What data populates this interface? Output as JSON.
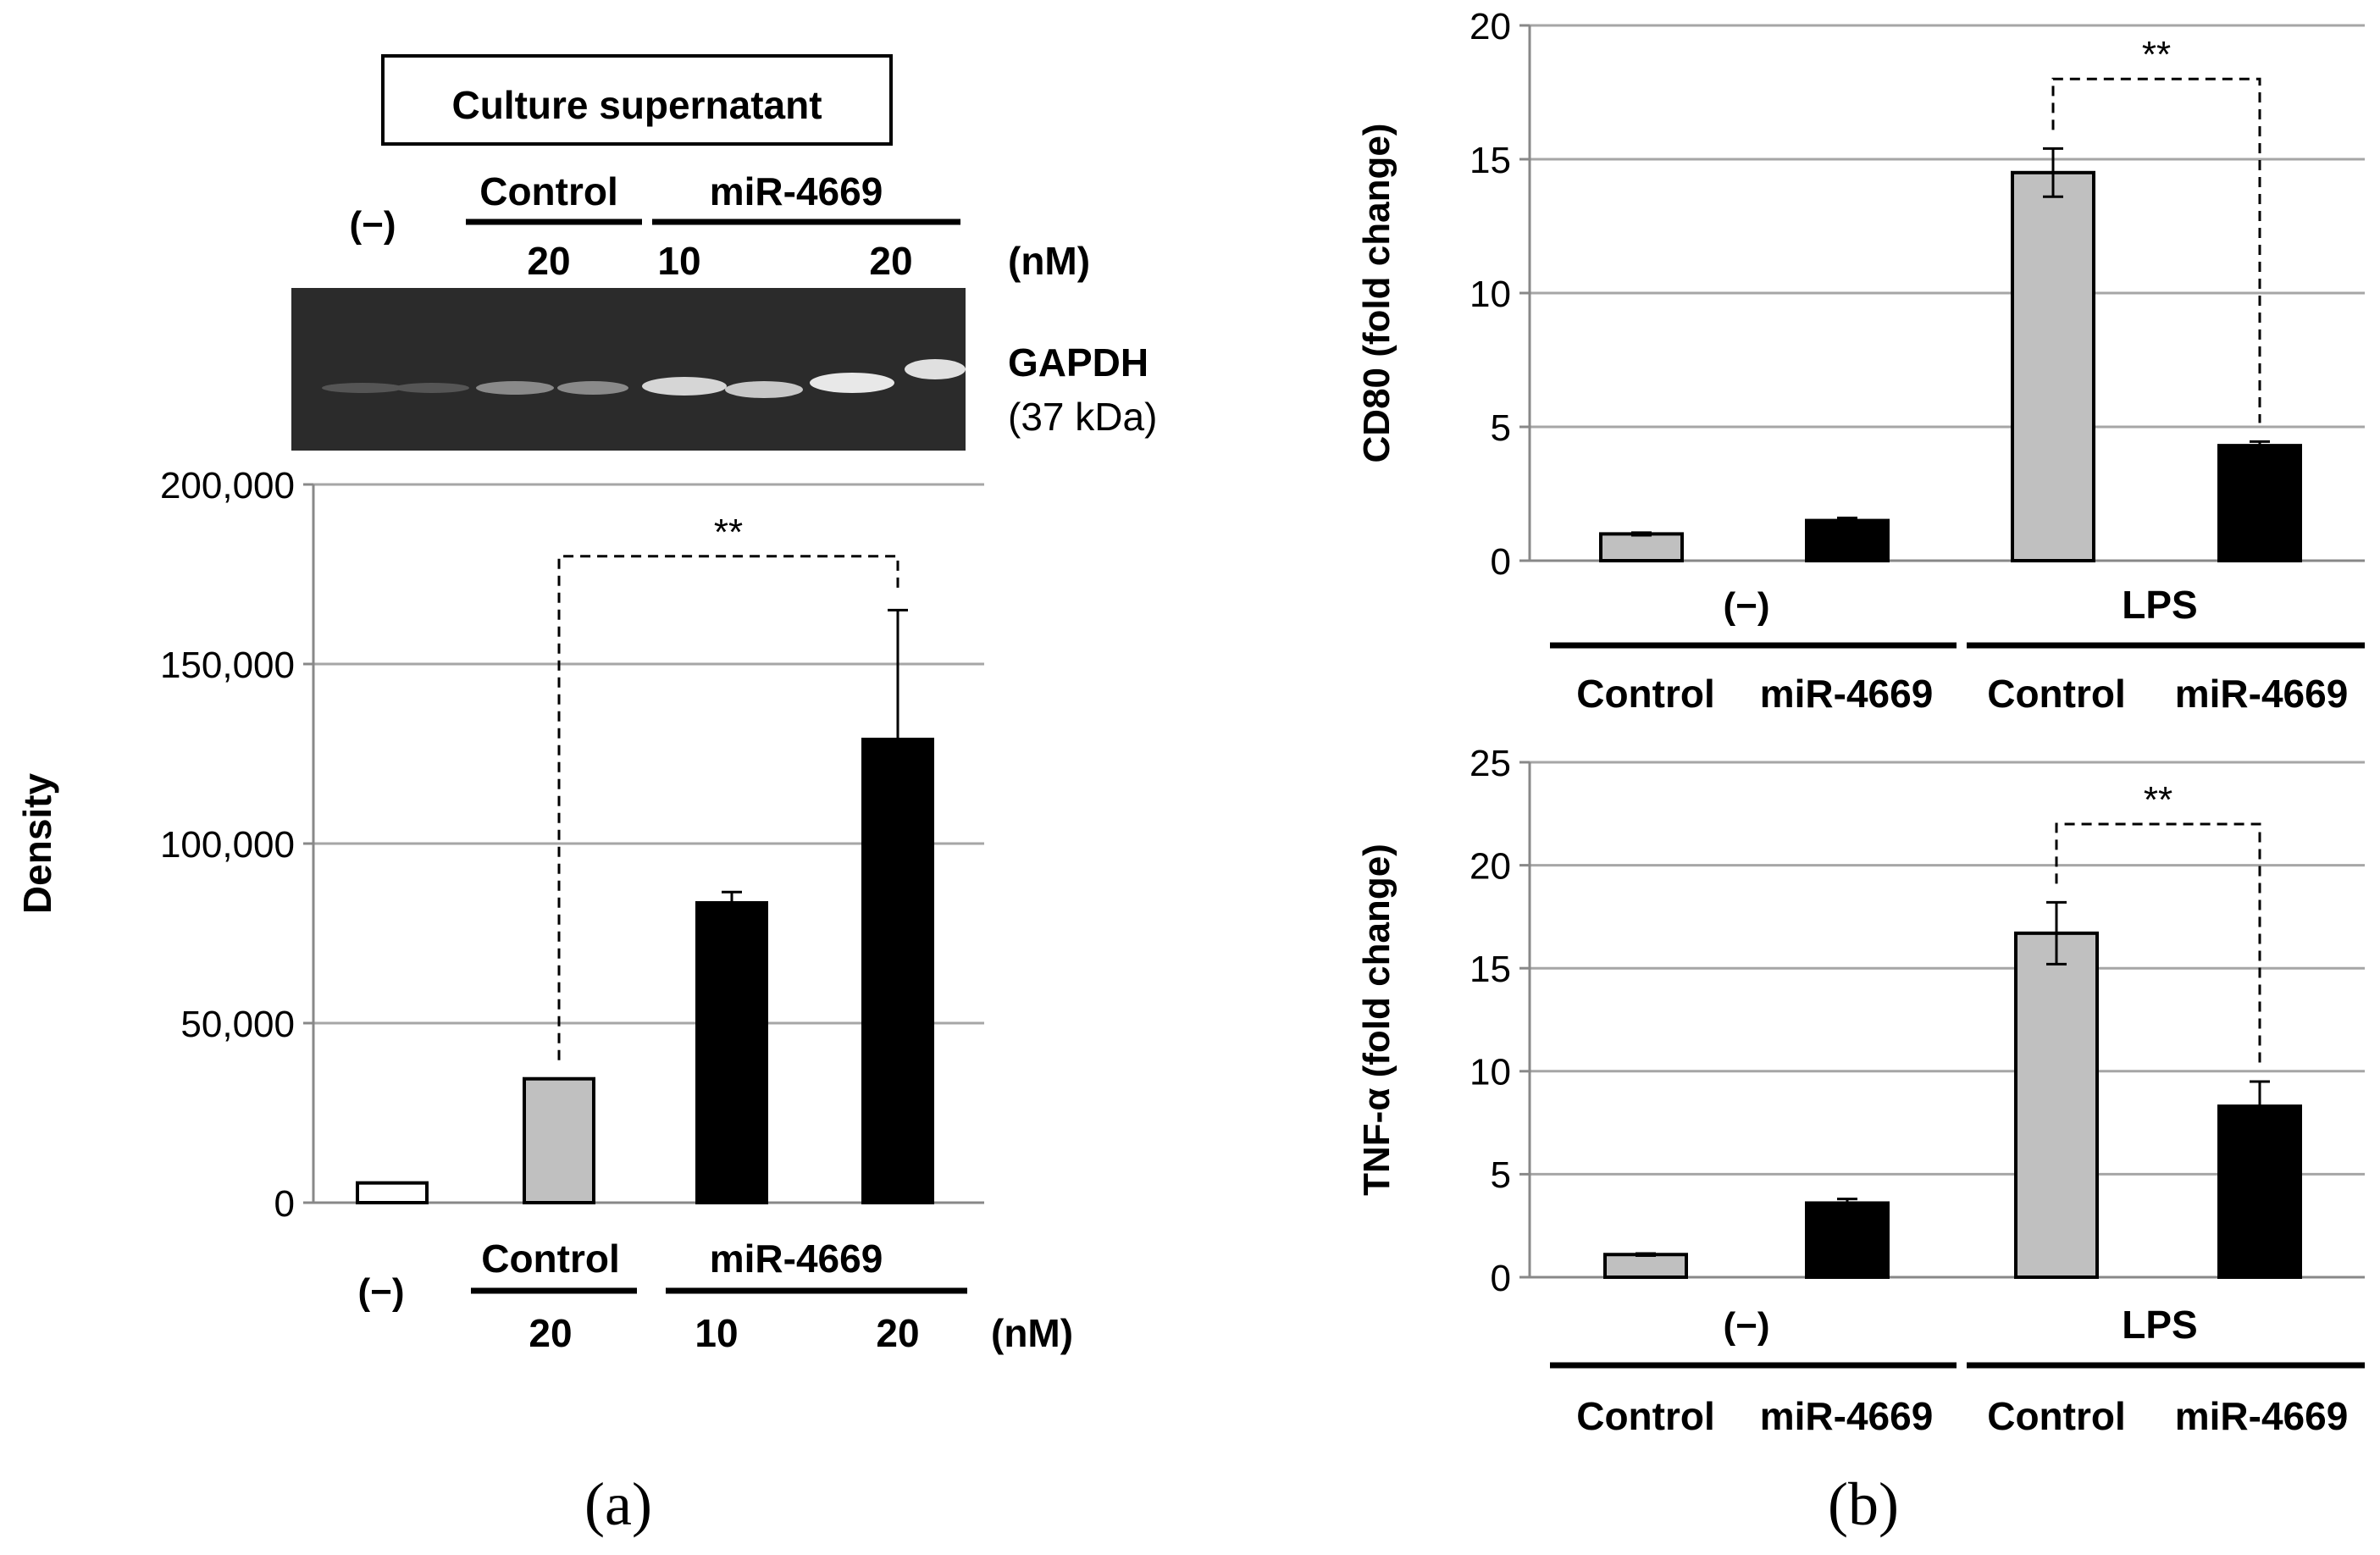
{
  "chart_data": [
    {
      "panel": "a",
      "type": "bar",
      "panel_label": "(a)",
      "blot": {
        "box_label": "Culture supernatant",
        "neg_label": "(−)",
        "group_control": "Control",
        "group_mir": "miR-4669",
        "conc_labels": [
          "20",
          "10",
          "20"
        ],
        "unit": "(nM)",
        "band_label": "GAPDH",
        "band_size": "(37 kDa)"
      },
      "ylabel": "Density",
      "ylim": [
        0,
        200000
      ],
      "yticks": [
        0,
        50000,
        100000,
        150000,
        200000
      ],
      "ytick_labels": [
        "0",
        "50,000",
        "100,000",
        "150,000",
        "200,000"
      ],
      "categories": [
        "(−)",
        "Control 20 nM",
        "miR-4669 10 nM",
        "miR-4669 20 nM"
      ],
      "values": [
        5500,
        34500,
        83500,
        129000
      ],
      "errors": [
        0,
        0,
        3000,
        36000
      ],
      "colors": [
        "#ffffff",
        "#c0c0c0",
        "#000000",
        "#000000"
      ],
      "significance": {
        "from": 1,
        "to": 3,
        "label": "**"
      },
      "xaxis": {
        "neg_label": "(−)",
        "group_control": "Control",
        "group_mir": "miR-4669",
        "conc_labels": [
          "20",
          "10",
          "20"
        ],
        "unit": "(nM)"
      }
    },
    {
      "panel": "b-top",
      "type": "bar",
      "ylabel": "CD80 (fold change)",
      "ylim": [
        0,
        20
      ],
      "yticks": [
        0,
        5,
        10,
        15,
        20
      ],
      "ytick_labels": [
        "0",
        "5",
        "10",
        "15",
        "20"
      ],
      "categories": [
        "Control",
        "miR-4669",
        "Control",
        "miR-4669"
      ],
      "groups": [
        "(−)",
        "LPS"
      ],
      "values": [
        1.0,
        1.5,
        14.5,
        4.3
      ],
      "errors": [
        0.05,
        0.1,
        0.9,
        0.15
      ],
      "colors": [
        "#c0c0c0",
        "#000000",
        "#c0c0c0",
        "#000000"
      ],
      "significance": {
        "from": 2,
        "to": 3,
        "label": "**"
      }
    },
    {
      "panel": "b-bottom",
      "type": "bar",
      "panel_label": "(b)",
      "ylabel": "TNF-α (fold change)",
      "ylim": [
        0,
        25
      ],
      "yticks": [
        0,
        5,
        10,
        15,
        20,
        25
      ],
      "ytick_labels": [
        "0",
        "5",
        "10",
        "15",
        "20",
        "25"
      ],
      "categories": [
        "Control",
        "miR-4669",
        "Control",
        "miR-4669"
      ],
      "groups": [
        "(−)",
        "LPS"
      ],
      "values": [
        1.1,
        3.6,
        16.7,
        8.3
      ],
      "errors": [
        0.05,
        0.2,
        1.5,
        1.2
      ],
      "colors": [
        "#c0c0c0",
        "#000000",
        "#c0c0c0",
        "#000000"
      ],
      "significance": {
        "from": 2,
        "to": 3,
        "label": "**"
      }
    }
  ]
}
